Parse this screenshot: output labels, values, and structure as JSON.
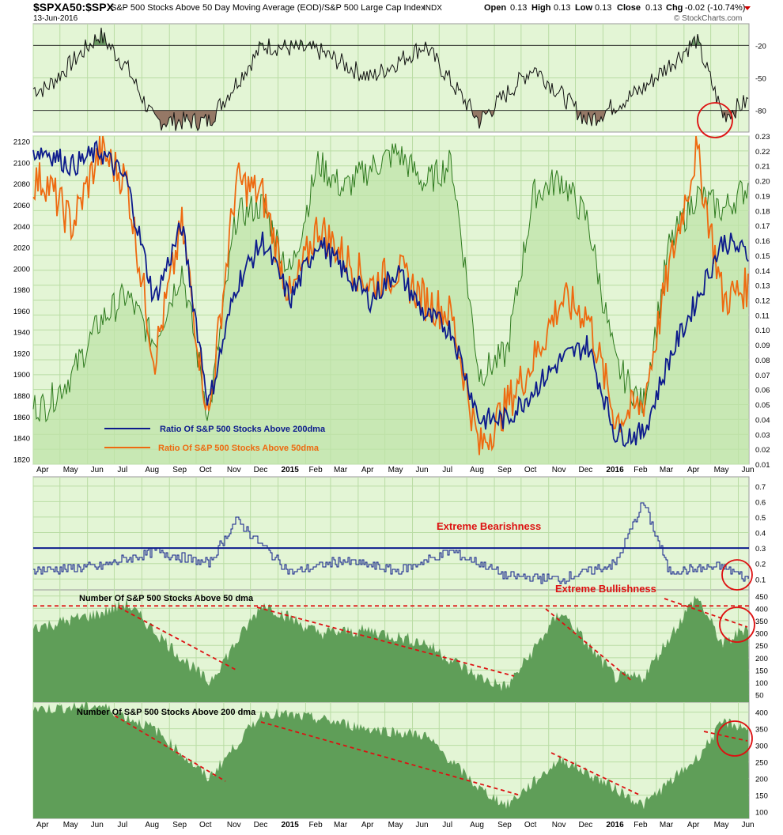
{
  "header": {
    "symbol": "$SPXA50:$SPX",
    "description": "S&P 500 Stocks Above 50 Day Moving Average (EOD)/S&P 500 Large Cap Index",
    "exchange": "INDX",
    "date": "13-Jun-2016",
    "open_label": "Open",
    "open_value": "0.13",
    "high_label": "High",
    "high_value": "0.13",
    "low_label": "Low",
    "low_value": "0.13",
    "close_label": "Close",
    "close_value": "0.13",
    "chg_label": "Chg",
    "chg_value": "-0.02 (-10.74%)",
    "brand": "© StockCharts.com"
  },
  "colors": {
    "panel_bg": "#e3f5d5",
    "grid": "#b9dca4",
    "ratio200": "#0d1b8c",
    "ratio50": "#ee6a10",
    "count_line": "#2e7a1e",
    "area_fill": "#5f9e58",
    "annotation": "#dd1111",
    "rsi_over": "#5d8f56",
    "rsi_under": "#8c6a5a"
  },
  "time_axis": {
    "ticks": [
      "Apr",
      "May",
      "Jun",
      "Jul",
      "Aug",
      "Sep",
      "Oct",
      "Nov",
      "Dec",
      "2015",
      "Feb",
      "Mar",
      "Apr",
      "May",
      "Jun",
      "Jul",
      "Aug",
      "Sep",
      "Oct",
      "Nov",
      "Dec",
      "2016",
      "Feb",
      "Mar",
      "Apr",
      "May",
      "Jun"
    ]
  },
  "chart_data": [
    {
      "type": "line",
      "panel": "indicator",
      "title": "",
      "y_ticks": [
        "-20",
        "-50",
        "-80"
      ],
      "x_range": [
        "2014-04-01",
        "2016-06-13"
      ],
      "ylim": [
        -100,
        0
      ],
      "overbought_level": -20,
      "oversold_level": -80,
      "x": [
        "2014-04",
        "2014-06",
        "2014-07",
        "2014-08",
        "2014-10",
        "2014-12",
        "2015-02",
        "2015-04",
        "2015-06",
        "2015-08",
        "2015-10",
        "2015-12",
        "2016-02",
        "2016-04",
        "2016-05",
        "2016-06"
      ],
      "series": [
        {
          "values": [
            -60,
            -10,
            -40,
            -90,
            -90,
            -20,
            -25,
            -50,
            -20,
            -90,
            -40,
            -90,
            -60,
            -15,
            -85,
            -70
          ]
        }
      ]
    },
    {
      "type": "line",
      "panel": "main",
      "legend": [
        "Ratio Of S&P 500 Stocks Above 200dma",
        "Ratio Of S&P 500 Stocks Above 50dma"
      ],
      "legend_position": "bottom-left",
      "left_axis_ticks": [
        "2120",
        "2100",
        "2080",
        "2060",
        "2040",
        "2020",
        "2000",
        "1980",
        "1960",
        "1940",
        "1920",
        "1900",
        "1880",
        "1860",
        "1840",
        "1820"
      ],
      "right_axis_ticks": [
        "0.23",
        "0.22",
        "0.21",
        "0.20",
        "0.19",
        "0.18",
        "0.17",
        "0.16",
        "0.15",
        "0.14",
        "0.13",
        "0.12",
        "0.11",
        "0.10",
        "0.09",
        "0.08",
        "0.07",
        "0.06",
        "0.05",
        "0.04",
        "0.03",
        "0.02",
        "0.01"
      ],
      "right_ylim": [
        0.01,
        0.23
      ],
      "left_ylim": [
        1815,
        2125
      ],
      "x": [
        "2014-04",
        "2014-05",
        "2014-06",
        "2014-07",
        "2014-08",
        "2014-09",
        "2014-10",
        "2014-11",
        "2014-12",
        "2015-01",
        "2015-02",
        "2015-03",
        "2015-04",
        "2015-05",
        "2015-06",
        "2015-07",
        "2015-08",
        "2015-09",
        "2015-10",
        "2015-11",
        "2015-12",
        "2016-01",
        "2016-02",
        "2016-03",
        "2016-04",
        "2016-05",
        "2016-06"
      ],
      "series": [
        {
          "name": "Ratio Of S&P 500 Stocks Above 200dma",
          "axis": "right",
          "values": [
            0.22,
            0.21,
            0.22,
            0.2,
            0.12,
            0.17,
            0.05,
            0.13,
            0.16,
            0.12,
            0.16,
            0.14,
            0.12,
            0.14,
            0.11,
            0.1,
            0.04,
            0.04,
            0.06,
            0.08,
            0.09,
            0.03,
            0.03,
            0.08,
            0.12,
            0.16,
            0.15
          ]
        },
        {
          "name": "Ratio Of S&P 500 Stocks Above 50dma",
          "axis": "right",
          "values": [
            0.2,
            0.17,
            0.22,
            0.2,
            0.08,
            0.17,
            0.04,
            0.2,
            0.19,
            0.12,
            0.17,
            0.15,
            0.13,
            0.14,
            0.12,
            0.11,
            0.02,
            0.05,
            0.08,
            0.12,
            0.11,
            0.04,
            0.05,
            0.14,
            0.22,
            0.12,
            0.13
          ]
        },
        {
          "name": "S&P 500 Large Cap Index",
          "axis": "left",
          "values": [
            1870,
            1900,
            1950,
            1975,
            1930,
            2000,
            1860,
            2050,
            2060,
            1995,
            2100,
            2075,
            2095,
            2110,
            2080,
            2100,
            1900,
            1920,
            2070,
            2085,
            2045,
            1910,
            1870,
            2020,
            2070,
            2055,
            2080
          ]
        }
      ]
    },
    {
      "type": "line",
      "panel": "ratio-bands",
      "y_ticks": [
        "0.7",
        "0.6",
        "0.5",
        "0.4",
        "0.3",
        "0.2",
        "0.1"
      ],
      "ylim": [
        0.03,
        0.76
      ],
      "threshold": 0.3,
      "annotations": [
        "Extreme Bearishness",
        "Extreme Bullishness"
      ],
      "x": [
        "2014-04",
        "2014-06",
        "2014-08",
        "2014-10",
        "2014-11",
        "2015-01",
        "2015-03",
        "2015-05",
        "2015-07",
        "2015-09",
        "2015-11",
        "2016-01",
        "2016-02",
        "2016-03",
        "2016-05",
        "2016-06"
      ],
      "series": [
        {
          "values": [
            0.16,
            0.18,
            0.28,
            0.2,
            0.48,
            0.14,
            0.22,
            0.15,
            0.28,
            0.12,
            0.1,
            0.2,
            0.6,
            0.15,
            0.18,
            0.09
          ]
        }
      ]
    },
    {
      "type": "area",
      "panel": "count-50",
      "title": "Number Of S&P 500 Stocks Above 50 dma",
      "y_ticks": [
        "450",
        "400",
        "350",
        "300",
        "250",
        "200",
        "150",
        "100",
        "50"
      ],
      "ylim": [
        20,
        475
      ],
      "threshold": 410,
      "x": [
        "2014-04",
        "2014-06",
        "2014-07",
        "2014-09",
        "2014-10",
        "2014-12",
        "2015-02",
        "2015-04",
        "2015-06",
        "2015-08",
        "2015-09",
        "2015-11",
        "2015-12",
        "2016-01",
        "2016-02",
        "2016-04",
        "2016-05",
        "2016-06"
      ],
      "series": [
        {
          "values": [
            330,
            380,
            420,
            200,
            100,
            420,
            300,
            310,
            260,
            120,
            80,
            390,
            250,
            120,
            120,
            450,
            250,
            340
          ]
        }
      ]
    },
    {
      "type": "area",
      "panel": "count-200",
      "title": "Number Of S&P 500 Stocks Above 200 dma",
      "y_ticks": [
        "400",
        "350",
        "300",
        "250",
        "200",
        "150",
        "100"
      ],
      "ylim": [
        80,
        430
      ],
      "x": [
        "2014-04",
        "2014-06",
        "2014-08",
        "2014-10",
        "2014-12",
        "2015-02",
        "2015-04",
        "2015-06",
        "2015-08",
        "2015-09",
        "2015-11",
        "2016-01",
        "2016-02",
        "2016-04",
        "2016-05",
        "2016-06"
      ],
      "series": [
        {
          "values": [
            410,
            420,
            350,
            200,
            400,
            380,
            350,
            330,
            170,
            120,
            260,
            170,
            120,
            260,
            370,
            350
          ]
        }
      ]
    }
  ]
}
